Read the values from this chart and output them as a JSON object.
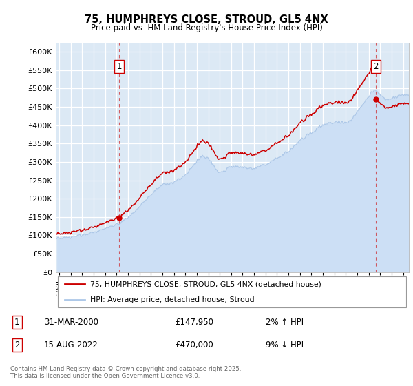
{
  "title": "75, HUMPHREYS CLOSE, STROUD, GL5 4NX",
  "subtitle": "Price paid vs. HM Land Registry's House Price Index (HPI)",
  "ytick_values": [
    0,
    50000,
    100000,
    150000,
    200000,
    250000,
    300000,
    350000,
    400000,
    450000,
    500000,
    550000,
    600000
  ],
  "ylim": [
    0,
    625000
  ],
  "xlim_start": 1994.7,
  "xlim_end": 2025.5,
  "hpi_color": "#adc8e8",
  "hpi_fill_color": "#ccdff5",
  "price_color": "#cc0000",
  "marker1_date": 2000.246,
  "marker1_price": 147950,
  "marker2_date": 2022.621,
  "marker2_price": 470000,
  "legend_line1": "75, HUMPHREYS CLOSE, STROUD, GL5 4NX (detached house)",
  "legend_line2": "HPI: Average price, detached house, Stroud",
  "footnote": "Contains HM Land Registry data © Crown copyright and database right 2025.\nThis data is licensed under the Open Government Licence v3.0.",
  "bg_color": "#ffffff",
  "plot_bg_color": "#dce9f5",
  "grid_color": "#ffffff",
  "table_row1": [
    "1",
    "31-MAR-2000",
    "£147,950",
    "2% ↑ HPI"
  ],
  "table_row2": [
    "2",
    "15-AUG-2022",
    "£470,000",
    "9% ↓ HPI"
  ],
  "hpi_key_years": [
    1995.0,
    1996.0,
    1997.0,
    1998.0,
    1999.0,
    2000.0,
    2001.0,
    2002.0,
    2003.0,
    2004.0,
    2005.0,
    2006.0,
    2007.0,
    2007.5,
    2008.0,
    2009.0,
    2009.5,
    2010.0,
    2011.0,
    2012.0,
    2013.0,
    2014.0,
    2015.0,
    2016.0,
    2017.0,
    2018.0,
    2019.0,
    2020.0,
    2020.5,
    2021.0,
    2021.5,
    2022.0,
    2022.5,
    2023.0,
    2023.5,
    2024.0,
    2024.5,
    2025.0
  ],
  "hpi_key_vals": [
    92000,
    95000,
    100000,
    108000,
    118000,
    130000,
    148000,
    178000,
    210000,
    238000,
    243000,
    263000,
    300000,
    318000,
    308000,
    270000,
    278000,
    288000,
    285000,
    282000,
    292000,
    310000,
    328000,
    358000,
    380000,
    400000,
    408000,
    405000,
    415000,
    435000,
    458000,
    478000,
    498000,
    480000,
    468000,
    472000,
    478000,
    482000
  ],
  "noise_seed": 17,
  "noise_std": 4500
}
